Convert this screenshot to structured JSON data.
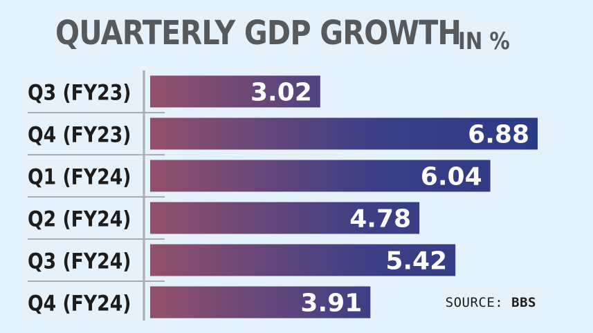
{
  "title": "QUARTERLY GDP GROWTH",
  "title_unit": "IN %",
  "source_label": "SOURCE:",
  "source_name": "BBS",
  "colors": {
    "background": "#e5f2fb",
    "bar_start": "#92506c",
    "bar_end": "#2a3b87",
    "title": "#555a5f",
    "axis": "#a9adb2",
    "label_text": "#1c1c1c",
    "value_text": "#ffffff"
  },
  "chart_data": {
    "type": "bar",
    "orientation": "horizontal",
    "title": "QUARTERLY GDP GROWTH IN %",
    "categories": [
      "Q3 (FY23)",
      "Q4 (FY23)",
      "Q1 (FY24)",
      "Q2 (FY24)",
      "Q3 (FY24)",
      "Q4 (FY24)"
    ],
    "values": [
      3.02,
      6.88,
      6.04,
      4.78,
      5.42,
      3.91
    ],
    "xlim": [
      0,
      6.88
    ],
    "grid": false,
    "legend": "none"
  }
}
